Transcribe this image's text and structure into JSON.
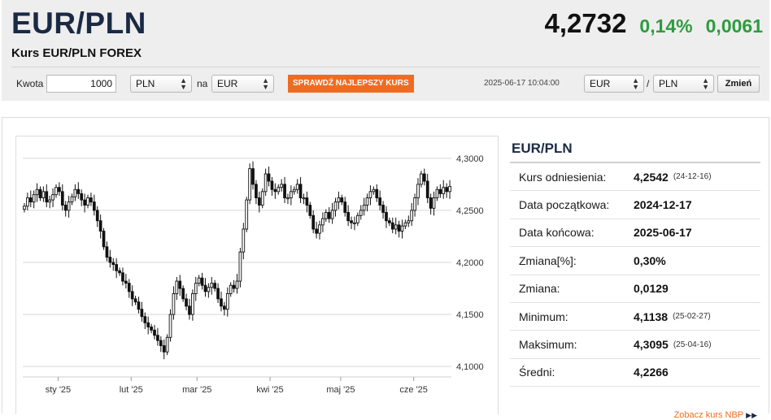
{
  "header": {
    "pair": "EUR/PLN",
    "price": "4,2732",
    "change_pct": "0,14%",
    "change_abs": "0,0061",
    "subtitle": "Kurs EUR/PLN FOREX"
  },
  "converter": {
    "amount_label": "Kwota",
    "amount_value": "1000",
    "from_currency": "PLN",
    "na_label": "na",
    "to_currency": "EUR",
    "best_rate_button": "SPRAWDŹ NAJLEPSZY KURS",
    "timestamp": "2025-06-17 10:04:00",
    "pair_base": "EUR",
    "slash": "/",
    "pair_quote": "PLN",
    "change_button": "Zmień"
  },
  "info": {
    "title": "EUR/PLN",
    "rows": [
      {
        "label": "Kurs odniesienia:",
        "value": "4,2542",
        "date": "(24-12-16)"
      },
      {
        "label": "Data początkowa:",
        "value": "2024-12-17",
        "date": ""
      },
      {
        "label": "Data końcowa:",
        "value": "2025-06-17",
        "date": ""
      },
      {
        "label": "Zmiana[%]:",
        "value": "0,30%",
        "date": ""
      },
      {
        "label": "Zmiana:",
        "value": "0,0129",
        "date": ""
      },
      {
        "label": "Minimum:",
        "value": "4,1138",
        "date": "(25-02-27)"
      },
      {
        "label": "Maksimum:",
        "value": "4,3095",
        "date": "(25-04-16)"
      },
      {
        "label": "Średni:",
        "value": "4,2266",
        "date": ""
      }
    ],
    "nbp_link": "Zobacz kurs NBP"
  },
  "colors": {
    "up_green": "#2e9b3f",
    "accent_orange": "#f26b1d",
    "title_navy": "#1b2a44",
    "candle_dark": "#111111"
  },
  "icons": {
    "select_arrows": "up-down-arrows-icon",
    "nbp_play": "double-play-icon"
  },
  "chart_data": {
    "type": "candlestick",
    "title": "",
    "xlabel": "",
    "ylabel": "",
    "ylim": [
      4.09,
      4.31
    ],
    "y_ticks": [
      "4,1000",
      "4,1500",
      "4,2000",
      "4,2500",
      "4,3000"
    ],
    "y_tick_values": [
      4.1,
      4.15,
      4.2,
      4.25,
      4.3
    ],
    "x_ticks": [
      "sty '25",
      "lut '25",
      "mar '25",
      "kwi '25",
      "maj '25",
      "cze '25"
    ],
    "x_tick_dates": [
      "2025-01-01",
      "2025-02-01",
      "2025-03-01",
      "2025-04-01",
      "2025-05-01",
      "2025-06-01"
    ],
    "x_range": [
      "2024-12-17",
      "2025-06-17"
    ],
    "series": [
      {
        "close": [
          4.254,
          4.262,
          4.258,
          4.265,
          4.27,
          4.262,
          4.268,
          4.258,
          4.26,
          4.265,
          4.272,
          4.268,
          4.255,
          4.25,
          4.258,
          4.263,
          4.27,
          4.266,
          4.26,
          4.255,
          4.262,
          4.258,
          4.25,
          4.24,
          4.23,
          4.215,
          4.205,
          4.2,
          4.198,
          4.192,
          4.19,
          4.182,
          4.18,
          4.172,
          4.165,
          4.162,
          4.155,
          4.148,
          4.142,
          4.138,
          4.135,
          4.13,
          4.125,
          4.12,
          4.114,
          4.128,
          4.15,
          4.17,
          4.182,
          4.175,
          4.165,
          4.158,
          4.15,
          4.17,
          4.18,
          4.185,
          4.178,
          4.172,
          4.176,
          4.18,
          4.175,
          4.165,
          4.158,
          4.155,
          4.17,
          4.178,
          4.175,
          4.182,
          4.21,
          4.232,
          4.26,
          4.29,
          4.275,
          4.262,
          4.255,
          4.268,
          4.285,
          4.278,
          4.27,
          4.268,
          4.272,
          4.275,
          4.262,
          4.262,
          4.268,
          4.27,
          4.275,
          4.262,
          4.262,
          4.255,
          4.245,
          4.232,
          4.228,
          4.236,
          4.242,
          4.248,
          4.242,
          4.25,
          4.258,
          4.262,
          4.258,
          4.248,
          4.24,
          4.238,
          4.238,
          4.245,
          4.25,
          4.255,
          4.262,
          4.268,
          4.27,
          4.262,
          4.255,
          4.248,
          4.24,
          4.238,
          4.232,
          4.236,
          4.23,
          4.235,
          4.238,
          4.24,
          4.25,
          4.262,
          4.275,
          4.285,
          4.278,
          4.262,
          4.252,
          4.262,
          4.27,
          4.266,
          4.272,
          4.268,
          4.273
        ]
      }
    ]
  }
}
